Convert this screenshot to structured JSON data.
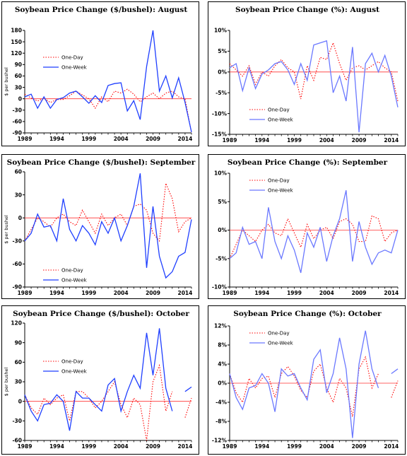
{
  "chart_data": [
    {
      "type": "line",
      "title": "Soybean Price Change ($/bushel): August",
      "ylabel": "$ per bushel",
      "xlabel": "",
      "ylim": [
        -90,
        180
      ],
      "yticks": [
        -90,
        -60,
        -30,
        0,
        30,
        60,
        90,
        120,
        150,
        180
      ],
      "ytick_labels": [
        "-90",
        "-60",
        "-30",
        "0",
        "30",
        "60",
        "90",
        "120",
        "150",
        "180"
      ],
      "xlim": [
        1989,
        2015
      ],
      "xticks": [
        1989,
        1994,
        1999,
        2004,
        2009,
        2014
      ],
      "xtick_labels": [
        "1989",
        "1994",
        "1999",
        "2004",
        "2009",
        "2014"
      ],
      "legend_position": "upper-left",
      "x": [
        1989,
        1990,
        1991,
        1992,
        1993,
        1994,
        1995,
        1996,
        1997,
        1998,
        1999,
        2000,
        2001,
        2002,
        2003,
        2004,
        2005,
        2006,
        2007,
        2008,
        2009,
        2010,
        2011,
        2012,
        2013,
        2014,
        2015
      ],
      "series": [
        {
          "name": "One-Day",
          "style": "dotted",
          "color": "#ff0000",
          "values": [
            12,
            2,
            -6,
            1,
            -10,
            -2,
            -2,
            8,
            20,
            10,
            0,
            -25,
            5,
            -8,
            20,
            15,
            25,
            12,
            -8,
            5,
            15,
            0,
            15,
            20,
            5,
            0,
            -90
          ]
        },
        {
          "name": "One-Week",
          "style": "solid",
          "color": "#1f3fff",
          "values": [
            5,
            12,
            -25,
            5,
            -25,
            -2,
            3,
            15,
            20,
            5,
            -12,
            8,
            -10,
            35,
            40,
            42,
            -32,
            -5,
            -55,
            85,
            180,
            20,
            60,
            2,
            55,
            -10,
            -88
          ]
        }
      ]
    },
    {
      "type": "line",
      "title": "Soybean Price Change (%):  August",
      "ylabel": "",
      "xlabel": "",
      "ylim": [
        -15,
        10
      ],
      "yticks": [
        -15,
        -10,
        -5,
        0,
        5,
        10
      ],
      "ytick_labels": [
        "-15%",
        "-10%",
        "-5%",
        "0%",
        "5%",
        "10%"
      ],
      "xlim": [
        1989,
        2015
      ],
      "xticks": [
        1989,
        1994,
        1999,
        2004,
        2009,
        2014
      ],
      "xtick_labels": [
        "1989",
        "1994",
        "1999",
        "2004",
        "2009",
        "2014"
      ],
      "legend_position": "lower-left",
      "x": [
        1989,
        1990,
        1991,
        1992,
        1993,
        1994,
        1995,
        1996,
        1997,
        1998,
        1999,
        2000,
        2001,
        2002,
        2003,
        2004,
        2005,
        2006,
        2007,
        2008,
        2009,
        2010,
        2011,
        2012,
        2013,
        2014,
        2015
      ],
      "series": [
        {
          "name": "One-Day",
          "style": "dotted",
          "color": "#ff0000",
          "values": [
            2,
            0.5,
            -1,
            1.5,
            -3,
            0,
            -1,
            1.5,
            3,
            1,
            0,
            -6.5,
            1.5,
            -2,
            3.5,
            3,
            7,
            2,
            -2,
            1,
            1.5,
            0.5,
            1.5,
            2.5,
            1,
            0,
            -7
          ]
        },
        {
          "name": "One-Week",
          "style": "solid",
          "color": "#6a78ff",
          "values": [
            1,
            2,
            -4.5,
            1,
            -4,
            -0.5,
            0.5,
            2,
            2.5,
            0.5,
            -3,
            2,
            -2,
            6.5,
            7,
            7.5,
            -5,
            -1,
            -7,
            6,
            -14.5,
            2,
            4.5,
            0,
            4,
            -1,
            -8.5
          ]
        }
      ]
    },
    {
      "type": "line",
      "title": "Soybean Price Change ($/bushel): September",
      "ylabel": "$ per bushel",
      "xlabel": "",
      "ylim": [
        -90,
        60
      ],
      "yticks": [
        -90,
        -60,
        -30,
        0,
        30,
        60
      ],
      "ytick_labels": [
        "-90",
        "-60",
        "-30",
        "0",
        "30",
        "60"
      ],
      "xlim": [
        1989,
        2015
      ],
      "xticks": [
        1989,
        1994,
        1999,
        2004,
        2009,
        2014
      ],
      "xtick_labels": [
        "1989",
        "1994",
        "1999",
        "2004",
        "2009",
        "2014"
      ],
      "legend_position": "lower-left",
      "x": [
        1989,
        1990,
        1991,
        1992,
        1993,
        1994,
        1995,
        1996,
        1997,
        1998,
        1999,
        2000,
        2001,
        2002,
        2003,
        2004,
        2005,
        2006,
        2007,
        2008,
        2009,
        2010,
        2011,
        2012,
        2013,
        2014,
        2015
      ],
      "series": [
        {
          "name": "One-Day",
          "style": "dotted",
          "color": "#ff0000",
          "values": [
            -30,
            -15,
            0,
            -5,
            -12,
            0,
            5,
            -5,
            -10,
            10,
            -5,
            -20,
            5,
            -10,
            0,
            5,
            -10,
            15,
            18,
            10,
            -20,
            -30,
            45,
            25,
            -18,
            -5,
            0
          ]
        },
        {
          "name": "One-Week",
          "style": "solid",
          "color": "#1f3fff",
          "values": [
            -30,
            -20,
            5,
            -12,
            -10,
            -30,
            25,
            -15,
            -30,
            -10,
            -20,
            -35,
            -5,
            -20,
            0,
            -30,
            -10,
            15,
            58,
            -65,
            15,
            -50,
            -78,
            -70,
            -50,
            -45,
            -2
          ]
        }
      ]
    },
    {
      "type": "line",
      "title": "Soybean Price Change (%):  September",
      "ylabel": "",
      "xlabel": "",
      "ylim": [
        -10,
        10
      ],
      "yticks": [
        -10,
        -5,
        0,
        5,
        10
      ],
      "ytick_labels": [
        "-10%",
        "-5%",
        "0%",
        "5%",
        "10%"
      ],
      "xlim": [
        1989,
        2015
      ],
      "xticks": [
        1989,
        1994,
        1999,
        2004,
        2009,
        2014
      ],
      "xtick_labels": [
        "1989",
        "1994",
        "1999",
        "2004",
        "2009",
        "2014"
      ],
      "legend_position": "upper-left",
      "x": [
        1989,
        1990,
        1991,
        1992,
        1993,
        1994,
        1995,
        1996,
        1997,
        1998,
        1999,
        2000,
        2001,
        2002,
        2003,
        2004,
        2005,
        2006,
        2007,
        2008,
        2009,
        2010,
        2011,
        2012,
        2013,
        2014,
        2015
      ],
      "series": [
        {
          "name": "One-Day",
          "style": "dotted",
          "color": "#ff0000",
          "values": [
            -5,
            -2.5,
            0,
            -1,
            -2,
            0,
            1,
            -0.5,
            -1,
            2,
            -0.5,
            -3,
            1,
            -1.5,
            0,
            0.5,
            -1.5,
            1.5,
            2,
            1,
            -2,
            -2,
            2.5,
            2,
            -2,
            -0.5,
            0
          ]
        },
        {
          "name": "One-Week",
          "style": "solid",
          "color": "#6a78ff",
          "values": [
            -5,
            -4,
            0.5,
            -2.5,
            -2,
            -5,
            4,
            -2,
            -5,
            -1,
            -3.5,
            -7.5,
            -0.5,
            -3,
            0.5,
            -5.5,
            -1,
            2,
            7,
            -5.5,
            1.5,
            -3,
            -6,
            -4,
            -3.5,
            -4,
            0
          ]
        }
      ]
    },
    {
      "type": "line",
      "title": "Soybean Price Change ($/bushel): October",
      "ylabel": "$ per bushel",
      "xlabel": "",
      "ylim": [
        -60,
        120
      ],
      "yticks": [
        -60,
        -30,
        0,
        30,
        60,
        90,
        120
      ],
      "ytick_labels": [
        "-60",
        "-30",
        "0",
        "30",
        "60",
        "90",
        "120"
      ],
      "xlim": [
        1989,
        2015
      ],
      "xticks": [
        1989,
        1994,
        1999,
        2004,
        2009,
        2014
      ],
      "xtick_labels": [
        "1989",
        "1994",
        "1999",
        "2004",
        "2009",
        "2014"
      ],
      "legend_position": "middle-left",
      "x": [
        1989,
        1990,
        1991,
        1992,
        1993,
        1994,
        1995,
        1996,
        1997,
        1998,
        1999,
        2000,
        2001,
        2002,
        2003,
        2004,
        2005,
        2006,
        2007,
        2008,
        2009,
        2010,
        2011,
        2012,
        2013,
        2014,
        2015
      ],
      "series": [
        {
          "name": "One-Day",
          "style": "dotted",
          "color": "#ff0000",
          "values": [
            10,
            -10,
            -20,
            5,
            -5,
            5,
            10,
            -30,
            15,
            15,
            5,
            -10,
            0,
            15,
            30,
            -5,
            -25,
            5,
            -5,
            -60,
            30,
            55,
            -15,
            15,
            null,
            -25,
            5
          ]
        },
        {
          "name": "One-Week",
          "style": "solid",
          "color": "#1f3fff",
          "values": [
            10,
            -15,
            -30,
            -5,
            -3,
            10,
            0,
            -45,
            15,
            5,
            5,
            -5,
            -15,
            25,
            35,
            -15,
            15,
            40,
            20,
            105,
            40,
            112,
            20,
            -15,
            null,
            15,
            22
          ]
        }
      ]
    },
    {
      "type": "line",
      "title": "Soybean Price Change (%):  October",
      "ylabel": "",
      "xlabel": "",
      "ylim": [
        -12,
        12
      ],
      "yticks": [
        -12,
        -8,
        -4,
        0,
        4,
        8,
        12
      ],
      "ytick_labels": [
        "-12%",
        "-8%",
        "-4%",
        "0%",
        "4%",
        "8%",
        "12%"
      ],
      "xlim": [
        1989,
        2015
      ],
      "xticks": [
        1989,
        1994,
        1999,
        2004,
        2009,
        2014
      ],
      "xtick_labels": [
        "1989",
        "1994",
        "1999",
        "2004",
        "2009",
        "2014"
      ],
      "legend_position": "upper-left",
      "x": [
        1989,
        1990,
        1991,
        1992,
        1993,
        1994,
        1995,
        1996,
        1997,
        1998,
        1999,
        2000,
        2001,
        2002,
        2003,
        2004,
        2005,
        2006,
        2007,
        2008,
        2009,
        2010,
        2011,
        2012,
        2013,
        2014,
        2015
      ],
      "series": [
        {
          "name": "One-Day",
          "style": "dotted",
          "color": "#ff0000",
          "values": [
            2,
            -2,
            -4,
            1,
            -1,
            1,
            1.5,
            -3,
            2,
            3.5,
            1.5,
            -1.5,
            -3,
            2.5,
            4,
            -1,
            -4,
            1,
            -1,
            -7,
            3,
            5.5,
            -1,
            2,
            null,
            -3,
            0.5
          ]
        },
        {
          "name": "One-Week",
          "style": "solid",
          "color": "#6a78ff",
          "values": [
            2,
            -3,
            -5.5,
            -1,
            -0.5,
            2,
            0,
            -6,
            3,
            1.5,
            2,
            -1,
            -3.5,
            5,
            7,
            -2,
            2,
            9.5,
            3,
            -11.5,
            4,
            11,
            3,
            -1,
            null,
            2,
            3
          ]
        }
      ]
    }
  ]
}
